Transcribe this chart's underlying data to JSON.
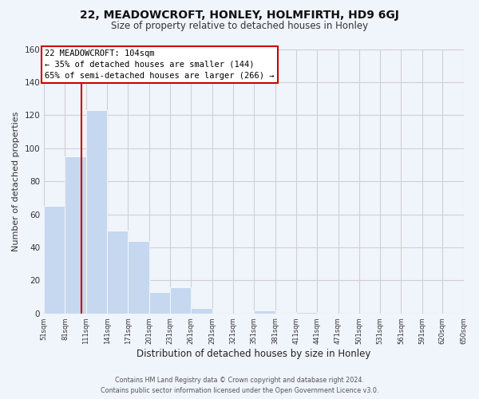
{
  "title": "22, MEADOWCROFT, HONLEY, HOLMFIRTH, HD9 6GJ",
  "subtitle": "Size of property relative to detached houses in Honley",
  "xlabel": "Distribution of detached houses by size in Honley",
  "ylabel": "Number of detached properties",
  "bin_edges": [
    51,
    81,
    111,
    141,
    171,
    201,
    231,
    261,
    291,
    321,
    351,
    381,
    411,
    441,
    471,
    501,
    531,
    561,
    591,
    620,
    650
  ],
  "bin_heights": [
    65,
    95,
    123,
    50,
    44,
    13,
    16,
    3,
    0,
    0,
    2,
    0,
    1,
    0,
    0,
    0,
    0,
    0,
    0,
    0
  ],
  "bar_color": "#c5d8f0",
  "highlight_line_x": 104,
  "highlight_line_color": "#cc0000",
  "annotation_line1": "22 MEADOWCROFT: 104sqm",
  "annotation_line2": "← 35% of detached houses are smaller (144)",
  "annotation_line3": "65% of semi-detached houses are larger (266) →",
  "xlim_left": 51,
  "xlim_right": 650,
  "ylim_top": 160,
  "tick_labels": [
    "51sqm",
    "81sqm",
    "111sqm",
    "141sqm",
    "171sqm",
    "201sqm",
    "231sqm",
    "261sqm",
    "291sqm",
    "321sqm",
    "351sqm",
    "381sqm",
    "411sqm",
    "441sqm",
    "471sqm",
    "501sqm",
    "531sqm",
    "561sqm",
    "591sqm",
    "620sqm",
    "650sqm"
  ],
  "footer_line1": "Contains HM Land Registry data © Crown copyright and database right 2024.",
  "footer_line2": "Contains public sector information licensed under the Open Government Licence v3.0.",
  "grid_color": "#d0d0d0",
  "background_color": "#f0f4fb",
  "yticks": [
    0,
    20,
    40,
    60,
    80,
    100,
    120,
    140,
    160
  ]
}
